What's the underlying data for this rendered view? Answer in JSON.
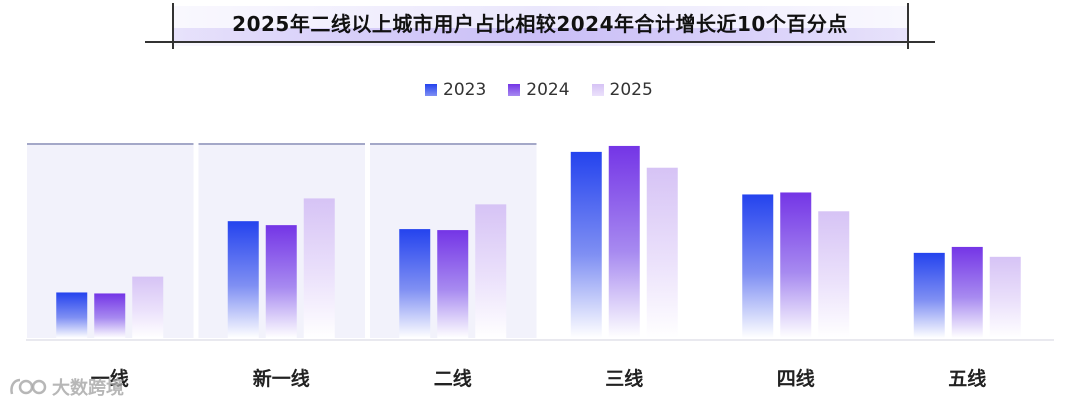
{
  "chart_data": {
    "type": "bar",
    "title": "2025年二线以上城市用户占比相较2024年合计增长近10个百分点",
    "categories": [
      "一线",
      "新一线",
      "二线",
      "三线",
      "四线",
      "五线"
    ],
    "series": [
      {
        "name": "2023",
        "values": [
          46,
          118,
          110,
          188,
          145,
          86
        ],
        "color": "#2b47e8"
      },
      {
        "name": "2024",
        "values": [
          45,
          114,
          109,
          194,
          147,
          92
        ],
        "color": "#7b3fe0"
      },
      {
        "name": "2025",
        "values": [
          62,
          141,
          135,
          172,
          128,
          82
        ],
        "color": "#d9c8f4"
      }
    ],
    "ylim": [
      0,
      200
    ],
    "grid": false,
    "legend_position": "top-center",
    "highlighted_categories": [
      "一线",
      "新一线",
      "二线"
    ],
    "xlabel": "",
    "ylabel": ""
  },
  "watermark": {
    "text": "大数跨境",
    "icon": "logo-icon"
  }
}
